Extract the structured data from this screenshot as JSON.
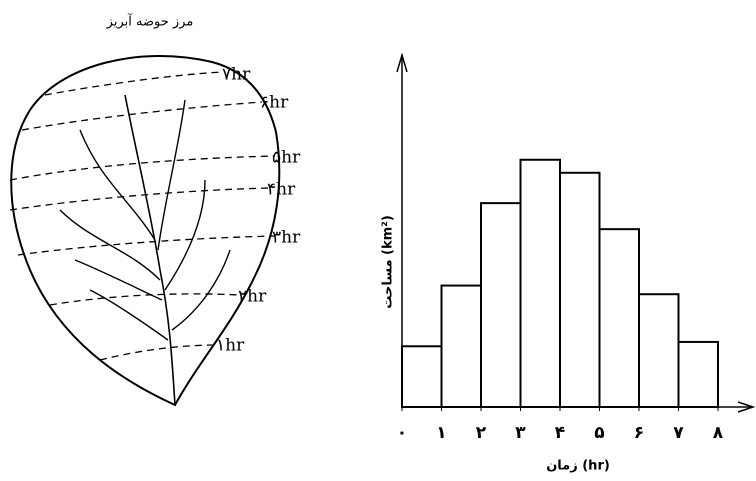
{
  "diagram": {
    "title": "مرز حوضه آبریز",
    "isochrone_labels": [
      "۷hr",
      "۶hr",
      "۵hr",
      "۴hr",
      "۳hr",
      "۲hr",
      "۱hr"
    ]
  },
  "chart_data": {
    "type": "histogram",
    "y_label": "مساحت (km²)",
    "x_label": "زمان (hr)",
    "bins": [
      0,
      1,
      2,
      3,
      4,
      5,
      6,
      7,
      8
    ],
    "values": [
      1.4,
      2.8,
      4.7,
      5.7,
      5.4,
      4.1,
      2.6,
      1.5
    ],
    "color": "#ffffff",
    "xlim": [
      0,
      8
    ],
    "ylim": [
      0,
      8
    ],
    "xticks": [
      {
        "value": 0,
        "label": "۰"
      },
      {
        "value": 1,
        "label": "۱"
      },
      {
        "value": 2,
        "label": "۲"
      },
      {
        "value": 3,
        "label": "۳"
      },
      {
        "value": 4,
        "label": "۴"
      },
      {
        "value": 5,
        "label": "۵"
      },
      {
        "value": 6,
        "label": "۶"
      },
      {
        "value": 7,
        "label": "۷"
      },
      {
        "value": 8,
        "label": "۸"
      }
    ]
  }
}
